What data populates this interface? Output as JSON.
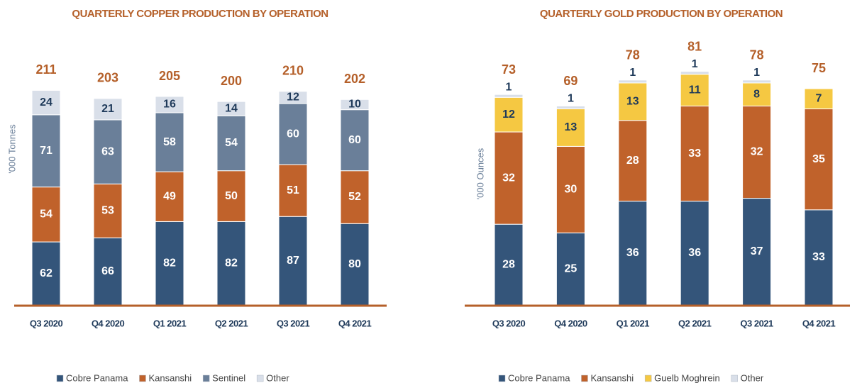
{
  "chart_data": [
    {
      "type": "bar",
      "stacked": true,
      "title": "QUARTERLY COPPER PRODUCTION BY OPERATION",
      "y_label": "'000 Tonnes",
      "categories": [
        "Q3 2020",
        "Q4 2020",
        "Q1 2021",
        "Q2 2021",
        "Q3 2021",
        "Q4 2021"
      ],
      "series": [
        {
          "name": "Cobre Panama",
          "color": "#34557a",
          "label_color": "#ffffff",
          "values": [
            62,
            66,
            82,
            82,
            87,
            80
          ]
        },
        {
          "name": "Kansanshi",
          "color": "#c0622b",
          "label_color": "#ffffff",
          "values": [
            54,
            53,
            49,
            50,
            51,
            52
          ]
        },
        {
          "name": "Sentinel",
          "color": "#6a7f99",
          "label_color": "#ffffff",
          "values": [
            71,
            63,
            58,
            54,
            60,
            60
          ]
        },
        {
          "name": "Other",
          "color": "#d9dfe9",
          "label_color": "#1f3a5a",
          "values": [
            24,
            21,
            16,
            14,
            12,
            10
          ]
        }
      ],
      "totals": [
        211,
        203,
        205,
        200,
        210,
        202
      ],
      "ylim": [
        0,
        258
      ]
    },
    {
      "type": "bar",
      "stacked": true,
      "title": "QUARTERLY GOLD PRODUCTION BY OPERATION",
      "y_label": "'000 Ounces",
      "categories": [
        "Q3 2020",
        "Q4 2020",
        "Q1 2021",
        "Q2 2021",
        "Q3 2021",
        "Q4 2021"
      ],
      "series": [
        {
          "name": "Cobre Panama",
          "color": "#34557a",
          "label_color": "#ffffff",
          "values": [
            28,
            25,
            36,
            36,
            37,
            33
          ]
        },
        {
          "name": "Kansanshi",
          "color": "#c0622b",
          "label_color": "#ffffff",
          "values": [
            32,
            30,
            28,
            33,
            32,
            35
          ]
        },
        {
          "name": "Guelb Moghrein",
          "color": "#f5c842",
          "label_color": "#1f3a5a",
          "values": [
            12,
            13,
            13,
            11,
            8,
            7
          ]
        },
        {
          "name": "Other",
          "color": "#d9dfe9",
          "label_color": "#1f3a5a",
          "values": [
            1,
            1,
            1,
            1,
            1,
            null
          ]
        }
      ],
      "totals": [
        73,
        69,
        78,
        81,
        78,
        75
      ],
      "ylim": [
        0,
        91
      ]
    }
  ]
}
